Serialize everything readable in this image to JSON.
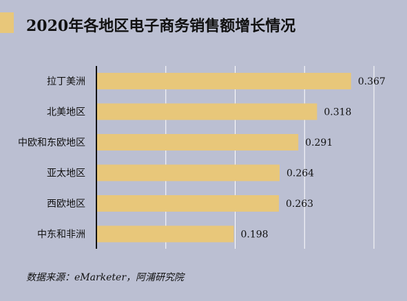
{
  "colors": {
    "background": "#bbbfd2",
    "accent": "#e8c77a",
    "bar": "#e8c77a",
    "axis": "#111111",
    "gridline": "#ffffff"
  },
  "header": {
    "title": "2020年各地区电子商务销售额增长情况"
  },
  "footer": {
    "source": "数据来源：eMarketer，阿浦研究院"
  },
  "chart_data": {
    "type": "bar",
    "orientation": "horizontal",
    "title": "2020年各地区电子商务销售额增长情况",
    "categories": [
      "拉丁美洲",
      "北美地区",
      "中欧和东欧地区",
      "亚太地区",
      "西欧地区",
      "中东和非洲"
    ],
    "values": [
      0.367,
      0.318,
      0.291,
      0.264,
      0.263,
      0.198
    ],
    "value_labels": [
      "0.367",
      "0.318",
      "0.291",
      "0.264",
      "0.263",
      "0.198"
    ],
    "xlim": [
      0,
      0.4
    ],
    "grid": true,
    "legend": "none"
  }
}
